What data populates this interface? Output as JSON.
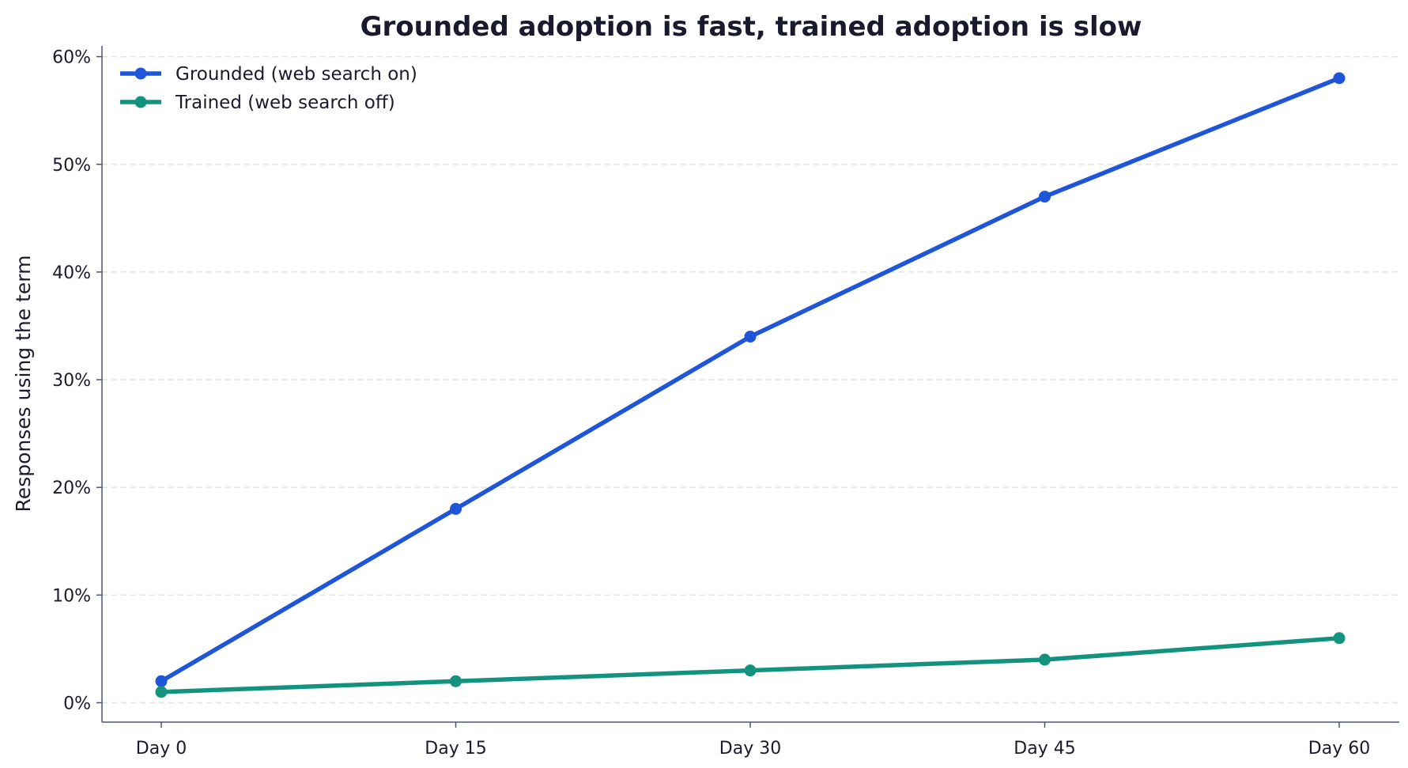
{
  "chart_data": {
    "type": "line",
    "title": "Grounded adoption is fast, trained adoption is slow",
    "xlabel": "",
    "ylabel": "Responses using the term",
    "categories": [
      "Day 0",
      "Day 15",
      "Day 30",
      "Day 45",
      "Day 60"
    ],
    "y_tick_labels": [
      "0%",
      "10%",
      "20%",
      "30%",
      "40%",
      "50%",
      "60%"
    ],
    "y_ticks": [
      0,
      10,
      20,
      30,
      40,
      50,
      60
    ],
    "ylim": [
      -1.8,
      61
    ],
    "grid": "horizontal dashed",
    "legend_position": "top-left",
    "series": [
      {
        "name": "Grounded (web search on)",
        "color": "#1f55d8",
        "values": [
          2,
          18,
          34,
          47,
          58
        ]
      },
      {
        "name": "Trained (web search off)",
        "color": "#13937f",
        "values": [
          1,
          2,
          3,
          4,
          6
        ]
      }
    ]
  }
}
